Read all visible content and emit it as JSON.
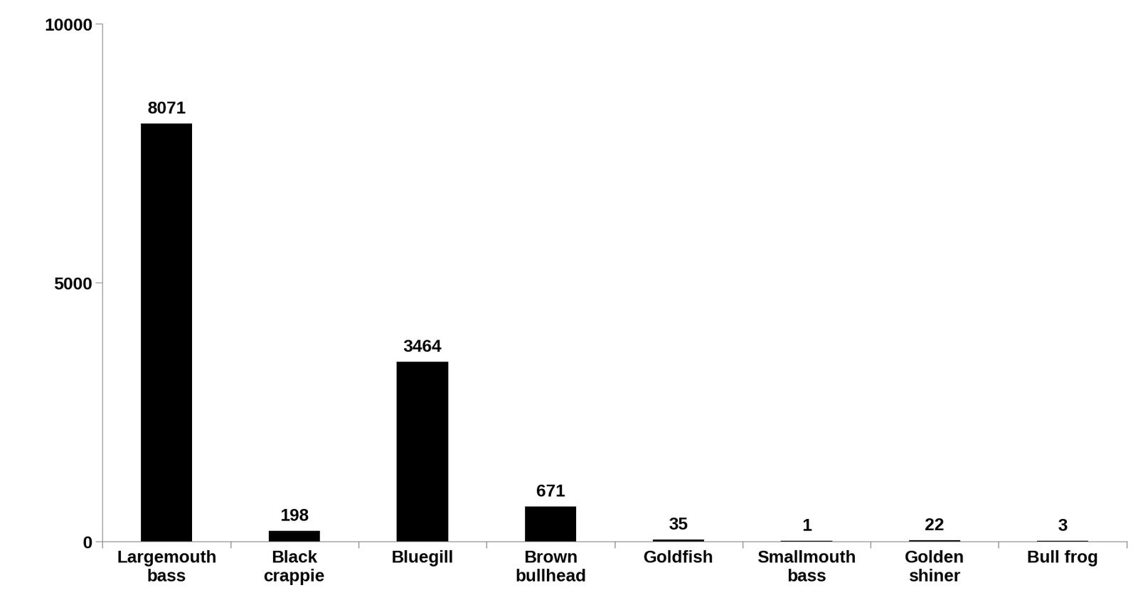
{
  "chart_data": {
    "type": "bar",
    "categories": [
      "Largemouth\nbass",
      "Black\ncrappie",
      "Bluegill",
      "Brown\nbullhead",
      "Goldfish",
      "Smallmouth\nbass",
      "Golden\nshiner",
      "Bull frog"
    ],
    "values": [
      8071,
      198,
      3464,
      671,
      35,
      1,
      22,
      3
    ],
    "color": "#000000",
    "ylim": [
      0,
      10000
    ],
    "yticks": [
      0,
      5000,
      10000
    ],
    "grid": false,
    "data_labels": true
  }
}
